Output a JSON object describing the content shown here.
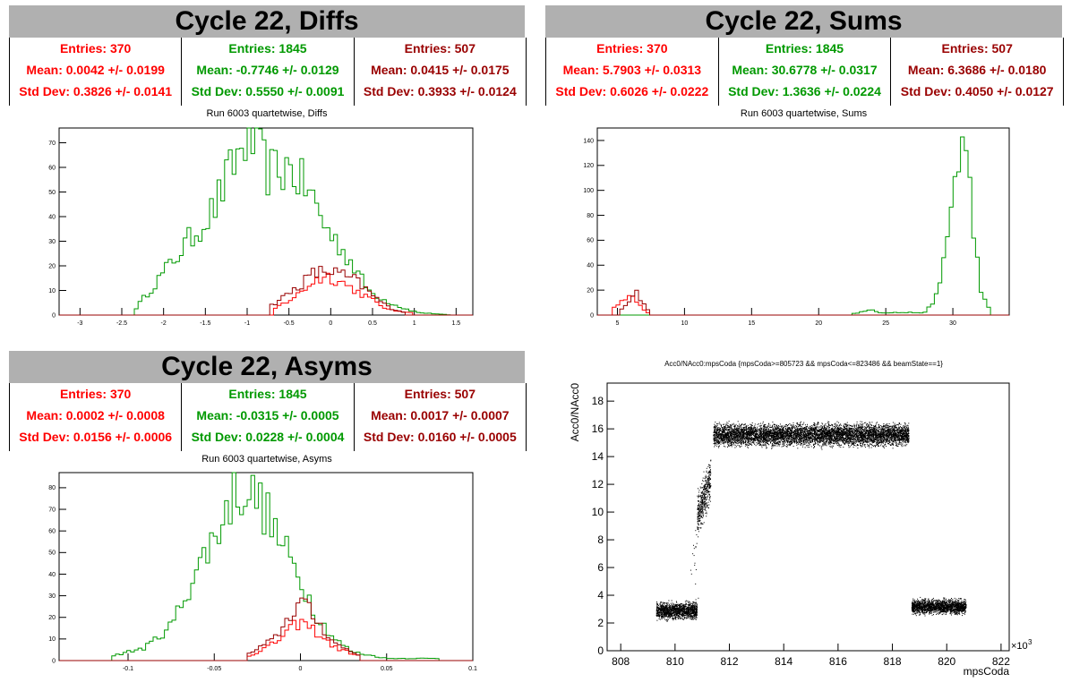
{
  "panels": {
    "diffs": {
      "title": "Cycle 22, Diffs",
      "stats": [
        {
          "entries": "Entries: 370",
          "mean": "Mean: 0.0042 +/- 0.0199",
          "std": "Std Dev: 0.3826 +/- 0.0141",
          "color": "#ff0000"
        },
        {
          "entries": "Entries: 1845",
          "mean": "Mean: -0.7746 +/- 0.0129",
          "std": "Std Dev: 0.5550 +/- 0.0091",
          "color": "#009900"
        },
        {
          "entries": "Entries: 507",
          "mean": "Mean: 0.0415 +/- 0.0175",
          "std": "Std Dev: 0.3933 +/- 0.0124",
          "color": "#990000"
        }
      ],
      "subtitle": "Run 6003 quartetwise, Diffs"
    },
    "sums": {
      "title": "Cycle 22, Sums",
      "stats": [
        {
          "entries": "Entries: 370",
          "mean": "Mean: 5.7903 +/- 0.0313",
          "std": "Std Dev: 0.6026 +/- 0.0222",
          "color": "#ff0000"
        },
        {
          "entries": "Entries: 1845",
          "mean": "Mean: 30.6778 +/- 0.0317",
          "std": "Std Dev: 1.3636 +/- 0.0224",
          "color": "#009900"
        },
        {
          "entries": "Entries: 507",
          "mean": "Mean: 6.3686 +/- 0.0180",
          "std": "Std Dev: 0.4050 +/- 0.0127",
          "color": "#990000"
        }
      ],
      "subtitle": "Run 6003 quartetwise, Sums"
    },
    "asyms": {
      "title": "Cycle 22, Asyms",
      "stats": [
        {
          "entries": "Entries: 370",
          "mean": "Mean: 0.0002 +/- 0.0008",
          "std": "Std Dev: 0.0156 +/- 0.0006",
          "color": "#ff0000"
        },
        {
          "entries": "Entries: 1845",
          "mean": "Mean: -0.0315 +/- 0.0005",
          "std": "Std Dev: 0.0228 +/- 0.0004",
          "color": "#009900"
        },
        {
          "entries": "Entries: 507",
          "mean": "Mean: 0.0017 +/- 0.0007",
          "std": "Std Dev: 0.0160 +/- 0.0005",
          "color": "#990000"
        }
      ],
      "subtitle": "Run 6003 quartetwise, Asyms"
    },
    "scatter": {
      "title": "Acc0/NAcc0:mpsCoda {mpsCoda>=805723 && mpsCoda<=823486 && beamState==1}",
      "xlabel": "mpsCoda",
      "ylabel": "Acc0/NAcc0",
      "exponent": "×10"
    }
  },
  "chart_data": [
    {
      "type": "histogram",
      "title": "Run 6003 quartetwise, Diffs",
      "xlim": [
        -3.25,
        1.7
      ],
      "ylim": [
        0,
        76
      ],
      "xticks": [
        -3,
        -2.5,
        -2,
        -1.5,
        -1,
        -0.5,
        0,
        0.5,
        1,
        1.5
      ],
      "yticks": [
        0,
        10,
        20,
        30,
        40,
        50,
        60,
        70
      ],
      "series": [
        {
          "color": "#009900",
          "entries": 1845,
          "mean": -0.7746,
          "std": 0.555,
          "peaks": [
            [
              -2.35,
              2
            ],
            [
              -1.75,
              28
            ],
            [
              -1.4,
              43
            ],
            [
              -1.15,
              62
            ],
            [
              -1.0,
              72
            ],
            [
              -0.88,
              68
            ],
            [
              -0.75,
              58
            ],
            [
              -0.5,
              60
            ],
            [
              -0.25,
              50
            ],
            [
              -0.05,
              35
            ],
            [
              0.2,
              24
            ],
            [
              0.45,
              10
            ],
            [
              0.65,
              6
            ],
            [
              0.85,
              3
            ],
            [
              1.05,
              1
            ],
            [
              1.45,
              0
            ]
          ]
        },
        {
          "color": "#ff0000",
          "entries": 370,
          "mean": 0.0042,
          "std": 0.3826,
          "peaks": [
            [
              -0.7,
              2
            ],
            [
              -0.4,
              8
            ],
            [
              -0.2,
              14
            ],
            [
              -0.05,
              16
            ],
            [
              0.1,
              14
            ],
            [
              0.3,
              10
            ],
            [
              0.5,
              6
            ],
            [
              0.7,
              2
            ],
            [
              1.0,
              1
            ]
          ]
        },
        {
          "color": "#990000",
          "entries": 507,
          "mean": 0.0415,
          "std": 0.3933,
          "peaks": [
            [
              -0.75,
              3
            ],
            [
              -0.45,
              10
            ],
            [
              -0.2,
              17
            ],
            [
              0.0,
              18
            ],
            [
              0.15,
              16
            ],
            [
              0.3,
              14
            ],
            [
              0.5,
              8
            ],
            [
              0.7,
              3
            ],
            [
              0.9,
              1
            ]
          ]
        }
      ]
    },
    {
      "type": "histogram",
      "title": "Run 6003 quartetwise, Sums",
      "xlim": [
        3.5,
        34.2
      ],
      "ylim": [
        0,
        150
      ],
      "xticks": [
        5,
        10,
        15,
        20,
        25,
        30
      ],
      "yticks": [
        0,
        20,
        40,
        60,
        80,
        100,
        120,
        140
      ],
      "series": [
        {
          "color": "#009900",
          "entries": 1845,
          "mean": 30.6778,
          "std": 1.3636,
          "peaks": [
            [
              22.5,
              1
            ],
            [
              23.5,
              3
            ],
            [
              24,
              5
            ],
            [
              24.5,
              2
            ],
            [
              28,
              2
            ],
            [
              29,
              20
            ],
            [
              29.8,
              80
            ],
            [
              30.3,
              120
            ],
            [
              30.7,
              140
            ],
            [
              31.1,
              120
            ],
            [
              31.6,
              60
            ],
            [
              32.2,
              15
            ],
            [
              32.8,
              3
            ]
          ]
        },
        {
          "color": "#ff0000",
          "entries": 370,
          "mean": 5.7903,
          "std": 0.6026,
          "peaks": [
            [
              4.5,
              3
            ],
            [
              5.2,
              10
            ],
            [
              5.8,
              16
            ],
            [
              6.3,
              12
            ],
            [
              6.9,
              5
            ],
            [
              7.4,
              1
            ]
          ]
        },
        {
          "color": "#990000",
          "entries": 507,
          "mean": 6.3686,
          "std": 0.405,
          "peaks": [
            [
              5.3,
              4
            ],
            [
              6.0,
              12
            ],
            [
              6.4,
              18
            ],
            [
              6.9,
              10
            ],
            [
              7.4,
              3
            ]
          ]
        }
      ]
    },
    {
      "type": "histogram",
      "title": "Run 6003 quartetwise, Asyms",
      "xlim": [
        -0.14,
        0.1
      ],
      "ylim": [
        0,
        87
      ],
      "xticks": [
        -0.1,
        -0.05,
        0,
        0.05,
        0.1
      ],
      "yticks": [
        0,
        10,
        20,
        30,
        40,
        50,
        60,
        70,
        80
      ],
      "series": [
        {
          "color": "#009900",
          "entries": 1845,
          "mean": -0.0315,
          "std": 0.0228,
          "peaks": [
            [
              -0.11,
              2
            ],
            [
              -0.09,
              6
            ],
            [
              -0.075,
              16
            ],
            [
              -0.06,
              42
            ],
            [
              -0.045,
              65
            ],
            [
              -0.038,
              80
            ],
            [
              -0.03,
              78
            ],
            [
              -0.022,
              72
            ],
            [
              -0.012,
              55
            ],
            [
              0.0,
              38
            ],
            [
              0.01,
              20
            ],
            [
              0.02,
              10
            ],
            [
              0.03,
              4
            ],
            [
              0.05,
              1
            ],
            [
              0.08,
              1
            ]
          ]
        },
        {
          "color": "#ff0000",
          "entries": 370,
          "mean": 0.0002,
          "std": 0.0156,
          "peaks": [
            [
              -0.03,
              2
            ],
            [
              -0.015,
              8
            ],
            [
              -0.005,
              15
            ],
            [
              0.0,
              18
            ],
            [
              0.008,
              14
            ],
            [
              0.02,
              6
            ],
            [
              0.035,
              2
            ]
          ]
        },
        {
          "color": "#990000",
          "entries": 507,
          "mean": 0.0017,
          "std": 0.016,
          "peaks": [
            [
              -0.03,
              3
            ],
            [
              -0.015,
              10
            ],
            [
              -0.005,
              22
            ],
            [
              0.0,
              28
            ],
            [
              0.008,
              20
            ],
            [
              0.02,
              8
            ],
            [
              0.035,
              2
            ]
          ]
        }
      ]
    },
    {
      "type": "scatter",
      "title": "Acc0/NAcc0:mpsCoda {mpsCoda>=805723 && mpsCoda<=823486 && beamState==1}",
      "xlabel": "mpsCoda",
      "ylabel": "Acc0/NAcc0",
      "x_multiplier": "1e3",
      "xlim": [
        807.5,
        822.3
      ],
      "ylim": [
        0,
        19.3
      ],
      "xticks": [
        808,
        810,
        812,
        814,
        816,
        818,
        820,
        822
      ],
      "yticks": [
        0,
        2,
        4,
        6,
        8,
        10,
        12,
        14,
        16,
        18
      ],
      "clusters": [
        {
          "x": [
            809.3,
            810.8
          ],
          "y_center": 2.9,
          "y_spread": 0.45,
          "color": "#000000"
        },
        {
          "x": [
            810.8,
            811.3
          ],
          "y_center": 10.5,
          "y_spread": 1.2,
          "color": "#000000"
        },
        {
          "x": [
            811.4,
            818.6
          ],
          "y_center": 15.6,
          "y_spread": 0.6,
          "color": "#000000"
        },
        {
          "x": [
            818.7,
            820.7
          ],
          "y_center": 3.2,
          "y_spread": 0.4,
          "color": "#000000"
        }
      ]
    }
  ]
}
